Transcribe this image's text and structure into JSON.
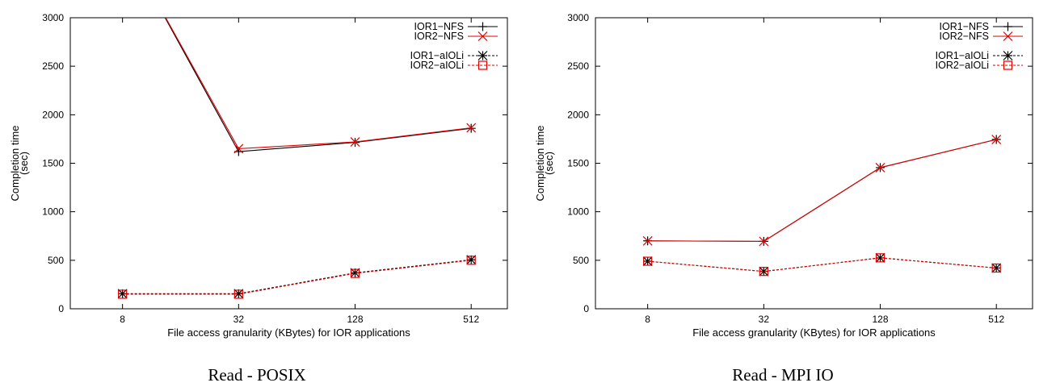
{
  "colors": {
    "black": "#000000",
    "red": "#e00000"
  },
  "chart_data": [
    {
      "type": "line",
      "caption": "Read - POSIX",
      "xlabel": "File access granularity (KBytes) for IOR applications",
      "ylabel": "Completion time (sec)",
      "categories": [
        "8",
        "32",
        "128",
        "512"
      ],
      "ylim": [
        0,
        3000
      ],
      "yticks": [
        "0",
        "500",
        "1000",
        "1500",
        "2000",
        "2500",
        "3000"
      ],
      "grid": false,
      "legend_position": "top-right",
      "series": [
        {
          "name": "IOR1−NFS",
          "values": [
            3800,
            1620,
            1715,
            1860
          ],
          "color": "#000000",
          "dash": false,
          "marker": "plus"
        },
        {
          "name": "IOR2−NFS",
          "values": [
            3800,
            1650,
            1720,
            1865
          ],
          "color": "#e00000",
          "dash": false,
          "marker": "cross"
        },
        {
          "name": "IOR1−aIOLi",
          "values": [
            155,
            155,
            370,
            505
          ],
          "color": "#000000",
          "dash": true,
          "marker": "star"
        },
        {
          "name": "IOR2−aIOLi",
          "values": [
            150,
            150,
            365,
            500
          ],
          "color": "#e00000",
          "dash": true,
          "marker": "square"
        }
      ]
    },
    {
      "type": "line",
      "caption": "Read - MPI IO",
      "xlabel": "File access granularity (KBytes) for IOR applications",
      "ylabel": "Completion time (sec)",
      "categories": [
        "8",
        "32",
        "128",
        "512"
      ],
      "ylim": [
        0,
        3000
      ],
      "yticks": [
        "0",
        "500",
        "1000",
        "1500",
        "2000",
        "2500",
        "3000"
      ],
      "grid": false,
      "legend_position": "top-right",
      "series": [
        {
          "name": "IOR1−NFS",
          "values": [
            700,
            695,
            1455,
            1745
          ],
          "color": "#000000",
          "dash": false,
          "marker": "plus"
        },
        {
          "name": "IOR2−NFS",
          "values": [
            700,
            695,
            1455,
            1745
          ],
          "color": "#e00000",
          "dash": false,
          "marker": "cross"
        },
        {
          "name": "IOR1−aIOLi",
          "values": [
            490,
            385,
            525,
            420
          ],
          "color": "#000000",
          "dash": true,
          "marker": "star"
        },
        {
          "name": "IOR2−aIOLi",
          "values": [
            490,
            385,
            525,
            420
          ],
          "color": "#e00000",
          "dash": true,
          "marker": "square"
        }
      ]
    }
  ]
}
